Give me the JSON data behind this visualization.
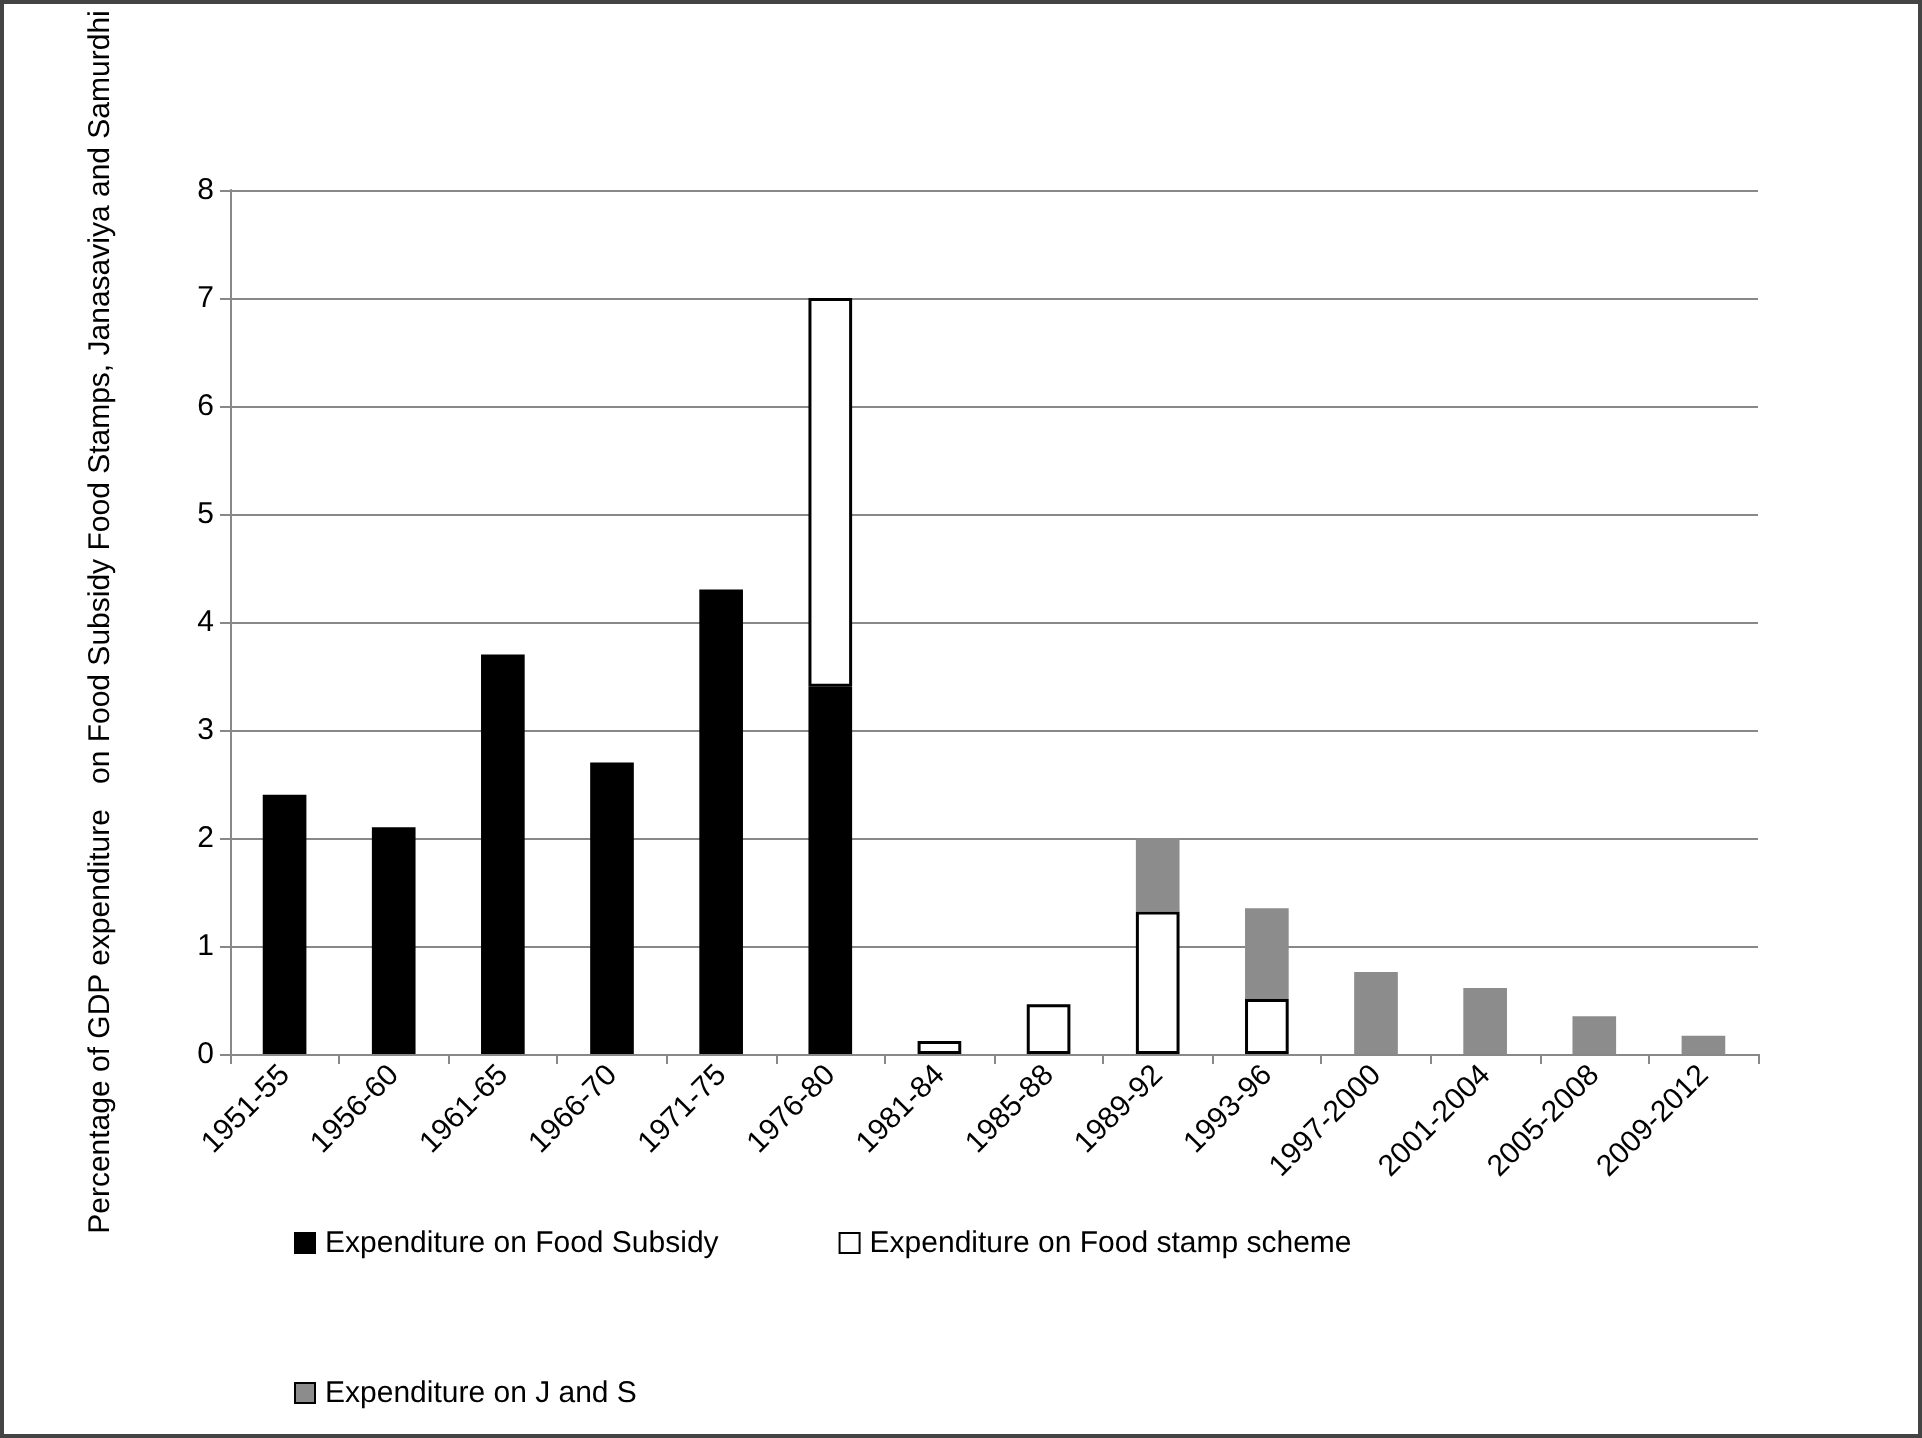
{
  "chart_data": {
    "type": "bar",
    "stacked": true,
    "ylabel": "Percentage of GDP expenditure   on Food Subsidy Food Stamps, Janasaviya and Samurdhi",
    "categories": [
      "1951-55",
      "1956-60",
      "1961-65",
      "1966-70",
      "1971-75",
      "1976-80",
      "1981-84",
      "1985-88",
      "1989-92",
      "1993-96",
      "1997-2000",
      "2001-2004",
      "2005-2008",
      "2009-2012"
    ],
    "series": [
      {
        "name": "Expenditure on Food Subsidy",
        "color": "#000000",
        "values": [
          2.4,
          2.1,
          3.7,
          2.7,
          4.3,
          3.4,
          null,
          null,
          null,
          null,
          null,
          null,
          null,
          null
        ]
      },
      {
        "name": "Expenditure on Food stamp scheme",
        "color": "#ffffff",
        "values": [
          null,
          null,
          null,
          null,
          null,
          3.6,
          0.12,
          0.46,
          1.32,
          0.51,
          null,
          null,
          null,
          null
        ]
      },
      {
        "name": "Expenditure on J and S",
        "color": "#8c8c8c",
        "values": [
          null,
          null,
          null,
          null,
          null,
          null,
          null,
          null,
          0.68,
          0.84,
          0.76,
          0.61,
          0.35,
          0.17
        ]
      }
    ],
    "ylim": [
      0,
      8
    ],
    "yticks": [
      0,
      1,
      2,
      3,
      4,
      5,
      6,
      7,
      8
    ],
    "grid": "y",
    "legend": "bottom"
  }
}
